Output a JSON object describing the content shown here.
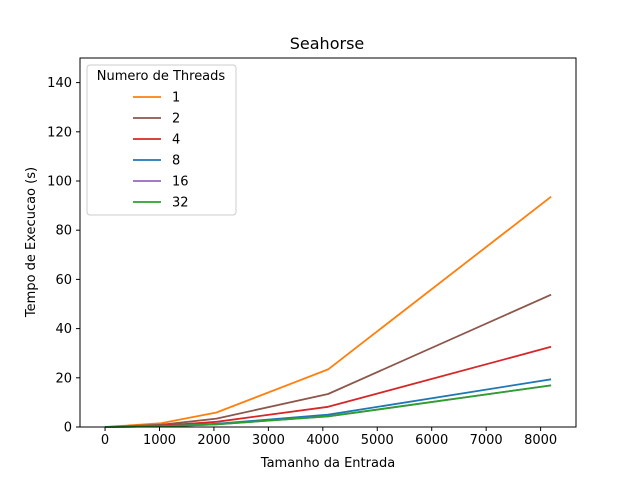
{
  "chart_data": {
    "type": "line",
    "title": "Seahorse",
    "xlabel": "Tamanho da Entrada",
    "ylabel": "Tempo de Execucao (s)",
    "xlim": [
      -460,
      8650
    ],
    "ylim": [
      0,
      150
    ],
    "xticks": [
      0,
      1000,
      2000,
      3000,
      4000,
      5000,
      6000,
      7000,
      8000
    ],
    "yticks": [
      0,
      20,
      40,
      60,
      80,
      100,
      120,
      140
    ],
    "grid": false,
    "legend_title": "Numero de Threads",
    "legend_position": "upper-left",
    "x": [
      0,
      1024,
      2048,
      4096,
      8192
    ],
    "series": [
      {
        "name": "1",
        "color": "#ff7f0e",
        "values": [
          0,
          1.5,
          5.9,
          23.4,
          93.6
        ]
      },
      {
        "name": "2",
        "color": "#8c564b",
        "values": [
          0,
          0.9,
          3.4,
          13.4,
          53.8
        ]
      },
      {
        "name": "4",
        "color": "#d62728",
        "values": [
          0,
          0.5,
          2.1,
          8.2,
          32.6
        ]
      },
      {
        "name": "8",
        "color": "#1f77b4",
        "values": [
          0,
          0.3,
          1.3,
          5.0,
          19.4
        ]
      },
      {
        "name": "16",
        "color": "#9467bd",
        "values": [
          0,
          0.3,
          1.1,
          4.3,
          16.9
        ]
      },
      {
        "name": "32",
        "color": "#2ca02c",
        "values": [
          0,
          0.3,
          1.1,
          4.3,
          16.9
        ]
      }
    ]
  }
}
